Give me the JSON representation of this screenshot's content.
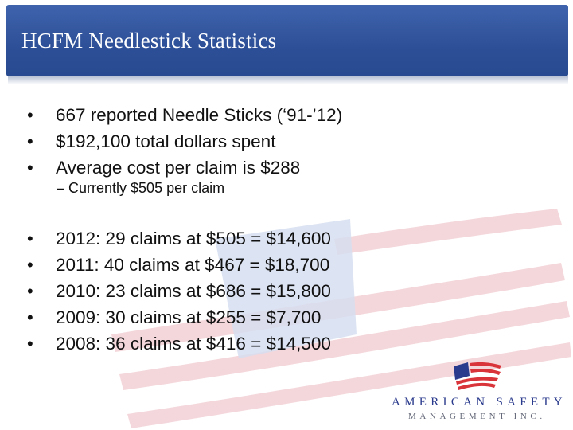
{
  "slide": {
    "title": "HCFM Needlestick Statistics"
  },
  "summary_bullets": [
    "667 reported Needle Sticks (‘91-’12)",
    "$192,100 total dollars spent",
    "Average cost per claim is $288"
  ],
  "sub_bullet": "– Currently $505 per claim",
  "year_bullets": [
    "2012: 29 claims at $505 = $14,600",
    "2011: 40 claims at $467 = $18,700",
    "2010: 23 claims at $686 = $15,800",
    "2009: 30 claims at $255 = $7,700",
    "2008: 36 claims at $416 = $14,500"
  ],
  "logo": {
    "line1": "AMERICAN SAFETY",
    "line2": "MANAGEMENT INC.",
    "colors": {
      "red": "#d9343a",
      "blue": "#2a3a8c",
      "gray": "#666a7a"
    }
  },
  "theme": {
    "title_bar": "#2d4f97",
    "watermark_red": "#f3d3d8",
    "watermark_blue": "#d6def0"
  }
}
